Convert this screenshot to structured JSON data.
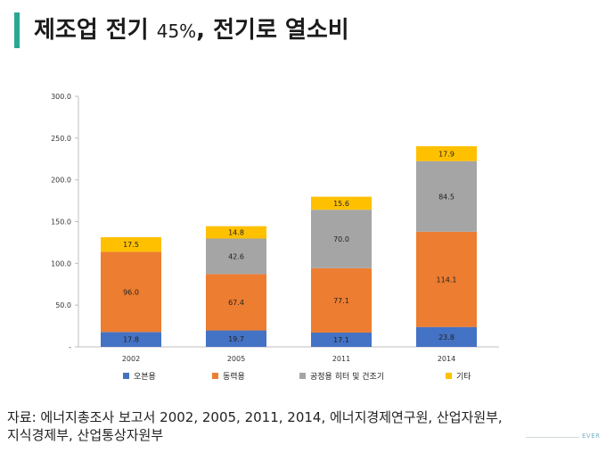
{
  "title": {
    "main": "제조업 전기",
    "percent": "45%",
    "rest": ", 전기로 열소비"
  },
  "source": {
    "line1": "자료: 에너지총조사 보고서 2002, 2005, 2011, 2014, 에너지경제연구원, 산업자원부,",
    "line2": "지식경제부, 산업통상자원부"
  },
  "footer": {
    "brand": "EVER"
  },
  "colors": {
    "accent_bar": "#2aa694"
  },
  "chart_data": {
    "type": "bar",
    "stacked": true,
    "categories": [
      "2002",
      "2005",
      "2011",
      "2014"
    ],
    "series": [
      {
        "name": "오븐용",
        "color": "#4472c4",
        "values": [
          17.8,
          19.7,
          17.1,
          23.8
        ],
        "labels": [
          "17.8",
          "19.7",
          "17.1",
          "23.8"
        ]
      },
      {
        "name": "동력용",
        "color": "#ed7d31",
        "values": [
          96.0,
          67.4,
          77.1,
          114.1
        ],
        "labels": [
          "96.0",
          "67.4",
          "77.1",
          "114.1"
        ]
      },
      {
        "name": "공정용 히터 및 건조기",
        "color": "#a5a5a5",
        "values": [
          0,
          42.6,
          70.0,
          84.5
        ],
        "labels": [
          "-",
          "42.6",
          "70.0",
          "84.5"
        ]
      },
      {
        "name": "기타",
        "color": "#ffc000",
        "values": [
          17.5,
          14.8,
          15.6,
          17.9
        ],
        "labels": [
          "17.5",
          "14.8",
          "15.6",
          "17.9"
        ]
      }
    ],
    "ylim": [
      0,
      300
    ],
    "yticks": [
      0,
      50,
      100,
      150,
      200,
      250,
      300
    ],
    "ytick_labels": [
      "-",
      "50.0",
      "100.0",
      "150.0",
      "200.0",
      "250.0",
      "300.0"
    ],
    "legend_position": "bottom",
    "grid": false
  }
}
